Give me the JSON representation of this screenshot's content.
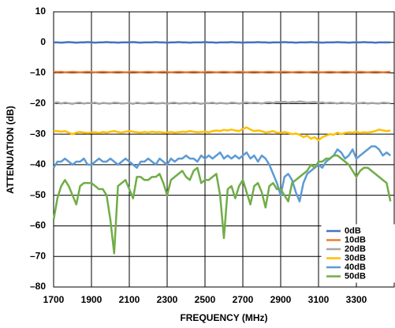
{
  "chart_data": {
    "type": "line",
    "xlabel": "FREQUENCY (MHz)",
    "ylabel": "ATTENUATION (dB)",
    "x": [
      1700,
      1720,
      1740,
      1760,
      1780,
      1800,
      1820,
      1840,
      1860,
      1880,
      1900,
      1920,
      1940,
      1960,
      1980,
      2000,
      2020,
      2040,
      2060,
      2080,
      2100,
      2120,
      2140,
      2160,
      2180,
      2200,
      2220,
      2240,
      2260,
      2280,
      2300,
      2320,
      2340,
      2360,
      2380,
      2400,
      2420,
      2440,
      2460,
      2480,
      2500,
      2520,
      2540,
      2560,
      2580,
      2600,
      2620,
      2640,
      2660,
      2680,
      2700,
      2720,
      2740,
      2760,
      2780,
      2800,
      2820,
      2840,
      2860,
      2880,
      2900,
      2920,
      2940,
      2960,
      2980,
      3000,
      3020,
      3040,
      3060,
      3080,
      3100,
      3120,
      3140,
      3160,
      3180,
      3200,
      3220,
      3240,
      3260,
      3280,
      3300,
      3320,
      3340,
      3360,
      3380,
      3400,
      3420,
      3440,
      3460,
      3480
    ],
    "series": [
      {
        "name": "0dB",
        "color": "#4472c4",
        "values": [
          0,
          0,
          -0.1,
          0,
          0.1,
          0,
          -0.1,
          0,
          0,
          0.1,
          0,
          -0.1,
          0,
          0,
          0.1,
          0,
          0,
          -0.1,
          0,
          0,
          0,
          0.1,
          0,
          -0.1,
          0,
          0,
          0,
          0.1,
          0,
          0,
          -0.1,
          0,
          0,
          0.1,
          0,
          0,
          -0.1,
          0,
          0,
          0,
          0.1,
          0,
          0,
          -0.1,
          0,
          0,
          0,
          0.1,
          0,
          0,
          -0.1,
          0,
          0,
          0,
          0.1,
          0,
          0,
          -0.1,
          0,
          0,
          0,
          0.1,
          0,
          0,
          -0.1,
          0,
          0,
          0,
          0.1,
          0,
          0,
          -0.1,
          0,
          0,
          0,
          0.1,
          0,
          0,
          -0.1,
          0,
          0,
          0,
          0.1,
          0,
          0,
          -0.1,
          0,
          0,
          0,
          0
        ]
      },
      {
        "name": "10dB",
        "color": "#ed7d31",
        "values": [
          -9.6,
          -9.7,
          -9.6,
          -9.8,
          -9.7,
          -9.6,
          -9.7,
          -9.8,
          -9.7,
          -9.6,
          -9.7,
          -9.8,
          -9.7,
          -9.6,
          -9.7,
          -9.8,
          -9.7,
          -9.6,
          -9.7,
          -9.8,
          -9.7,
          -9.6,
          -9.7,
          -9.8,
          -9.7,
          -9.6,
          -9.7,
          -9.8,
          -9.7,
          -9.6,
          -9.7,
          -9.8,
          -9.7,
          -9.6,
          -9.7,
          -9.8,
          -9.7,
          -9.6,
          -9.7,
          -9.8,
          -9.7,
          -9.6,
          -9.7,
          -9.8,
          -9.7,
          -9.6,
          -9.7,
          -9.8,
          -9.7,
          -9.6,
          -9.7,
          -9.8,
          -9.7,
          -9.6,
          -9.7,
          -9.8,
          -9.7,
          -9.6,
          -9.7,
          -9.8,
          -9.7,
          -9.6,
          -9.7,
          -9.8,
          -9.7,
          -9.6,
          -9.7,
          -9.8,
          -9.7,
          -9.6,
          -9.7,
          -9.8,
          -9.7,
          -9.6,
          -9.7,
          -9.8,
          -9.7,
          -9.6,
          -9.7,
          -9.8,
          -9.7,
          -9.6,
          -9.7,
          -9.8,
          -9.7,
          -9.6,
          -9.7,
          -9.8,
          -9.7,
          -9.6
        ]
      },
      {
        "name": "20dB",
        "color": "#a5a5a5",
        "values": [
          -19.8,
          -19.6,
          -20,
          -19.7,
          -19.9,
          -20.1,
          -19.8,
          -19.7,
          -20,
          -19.8,
          -19.9,
          -19.7,
          -20.1,
          -19.8,
          -19.9,
          -20,
          -19.7,
          -19.8,
          -20,
          -19.9,
          -19.8,
          -20.1,
          -19.7,
          -19.9,
          -20,
          -19.8,
          -19.7,
          -20,
          -19.9,
          -19.8,
          -20.1,
          -19.8,
          -19.7,
          -20,
          -19.9,
          -19.8,
          -20,
          -19.7,
          -19.9,
          -20.1,
          -19.8,
          -19.9,
          -19.7,
          -20,
          -19.8,
          -19.9,
          -20,
          -19.7,
          -19.8,
          -20,
          -19.8,
          -19.6,
          -19.9,
          -19.7,
          -19.8,
          -20,
          -19.7,
          -19.6,
          -19.8,
          -19.5,
          -19.6,
          -19.4,
          -19.7,
          -19.5,
          -19.6,
          -19.3,
          -19.5,
          -19.7,
          -19.6,
          -19.5,
          -19.8,
          -19.6,
          -19.9,
          -19.7,
          -19.8,
          -20,
          -19.7,
          -19.9,
          -19.8,
          -20.1,
          -19.8,
          -19.9,
          -19.7,
          -20,
          -19.8,
          -19.9,
          -20,
          -19.7,
          -19.8,
          -19.9
        ]
      },
      {
        "name": "30dB",
        "color": "#ffc000",
        "values": [
          -29,
          -29,
          -29.2,
          -29,
          -29.5,
          -30,
          -29.5,
          -29.3,
          -29.5,
          -29.6,
          -29.5,
          -29.4,
          -29.6,
          -29.3,
          -29.5,
          -29.2,
          -29,
          -29.3,
          -29.5,
          -29.2,
          -29,
          -29.2,
          -29.4,
          -29.5,
          -29.3,
          -29.5,
          -29.2,
          -29.4,
          -29.3,
          -29.5,
          -29.5,
          -29.3,
          -29.5,
          -29.4,
          -29.2,
          -29.3,
          -29,
          -29.2,
          -29.4,
          -29.3,
          -29.2,
          -29.4,
          -29,
          -28.8,
          -29,
          -28.6,
          -28.8,
          -28.5,
          -28.8,
          -29,
          -28.3,
          -27.8,
          -28.5,
          -29,
          -28.8,
          -29,
          -29.5,
          -29.3,
          -29,
          -29.5,
          -29.6,
          -29.3,
          -29.6,
          -30,
          -29.8,
          -30.2,
          -31,
          -30.5,
          -31.5,
          -31,
          -32,
          -31,
          -30.5,
          -30,
          -30.2,
          -29.5,
          -30,
          -29.6,
          -29.4,
          -29.5,
          -29.2,
          -29.6,
          -29.4,
          -29.5,
          -29.3,
          -29,
          -28.5,
          -28.8,
          -29,
          -28.8
        ]
      },
      {
        "name": "40dB",
        "color": "#5b9bd5",
        "values": [
          -41,
          -39,
          -39,
          -38,
          -39,
          -40,
          -39,
          -39,
          -38,
          -40,
          -40,
          -39,
          -38,
          -39,
          -39,
          -38,
          -39,
          -40,
          -39,
          -38,
          -39,
          -40,
          -41,
          -39,
          -39,
          -38,
          -39,
          -40,
          -38,
          -39,
          -40,
          -38,
          -39,
          -38,
          -38,
          -37,
          -38,
          -38,
          -39,
          -37,
          -38,
          -37,
          -38,
          -37,
          -36,
          -38,
          -37,
          -38,
          -37,
          -38,
          -37,
          -36,
          -38,
          -37,
          -39,
          -37,
          -38,
          -40,
          -43,
          -46,
          -50,
          -44,
          -43,
          -45,
          -49,
          -52,
          -46,
          -43,
          -42,
          -41,
          -40,
          -41,
          -39,
          -38,
          -37,
          -35,
          -36,
          -38,
          -37,
          -35,
          -38,
          -37,
          -36,
          -35,
          -34,
          -34,
          -35,
          -37,
          -36,
          -37
        ]
      },
      {
        "name": "50dB",
        "color": "#70ad47",
        "values": [
          -58,
          -51,
          -47,
          -45,
          -47,
          -50,
          -53,
          -47,
          -46,
          -46,
          -46,
          -47,
          -48,
          -48,
          -50,
          -58,
          -69,
          -47,
          -46,
          -45,
          -48,
          -51,
          -44,
          -44,
          -45,
          -45,
          -44,
          -44,
          -43,
          -46,
          -50,
          -45,
          -44,
          -43,
          -42,
          -44,
          -45,
          -42,
          -41,
          -46,
          -45,
          -45,
          -44,
          -43,
          -50,
          -64,
          -48,
          -47,
          -51,
          -47,
          -45,
          -49,
          -53,
          -47,
          -46,
          -49,
          -54,
          -47,
          -46,
          -48,
          -48,
          -50,
          -52,
          -46,
          -45,
          -44,
          -43,
          -42,
          -40,
          -41,
          -39,
          -39,
          -38,
          -38,
          -37,
          -37,
          -38,
          -39,
          -40,
          -42,
          -44,
          -42,
          -41,
          -41,
          -42,
          -43,
          -44,
          -45,
          -46,
          -52
        ]
      }
    ],
    "xlim": [
      1700,
      3500
    ],
    "xticks": [
      1700,
      1900,
      2100,
      2300,
      2500,
      2700,
      2900,
      3100,
      3300
    ],
    "ylim": [
      -80,
      10
    ],
    "yticks": [
      {
        "value": -80,
        "label": "–80"
      },
      {
        "value": -70,
        "label": "–70"
      },
      {
        "value": -60,
        "label": "–60"
      },
      {
        "value": -50,
        "label": "–50"
      },
      {
        "value": -40,
        "label": "–40"
      },
      {
        "value": -30,
        "label": "–30"
      },
      {
        "value": -20,
        "label": "–20"
      },
      {
        "value": -10,
        "label": "–10"
      },
      0,
      10
    ],
    "grid": true,
    "legend": "lower right"
  }
}
